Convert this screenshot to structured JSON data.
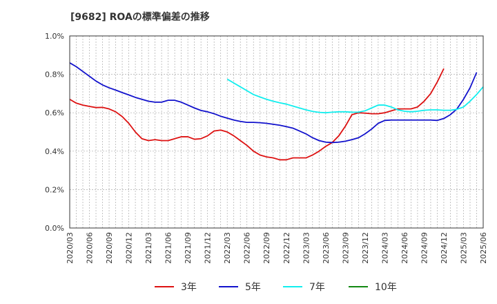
{
  "title": "[9682]  ROAの標準偏差の推移",
  "chart_data": {
    "type": "line",
    "title": "[9682]  ROAの標準偏差の推移",
    "xlabel": "",
    "ylabel": "",
    "ylim": [
      0,
      1.0
    ],
    "y_unit": "%",
    "y_ticks": [
      "0.0%",
      "0.2%",
      "0.4%",
      "0.6%",
      "0.8%",
      "1.0%"
    ],
    "x_ticks": [
      "2020/03",
      "2020/06",
      "2020/09",
      "2020/12",
      "2021/03",
      "2021/06",
      "2021/09",
      "2021/12",
      "2022/03",
      "2022/06",
      "2022/09",
      "2022/12",
      "2023/03",
      "2023/06",
      "2023/09",
      "2023/12",
      "2024/03",
      "2024/06",
      "2024/09",
      "2024/12",
      "2025/03",
      "2025/06"
    ],
    "grid": true,
    "legend_position": "bottom",
    "x_start": "2020/03",
    "series": [
      {
        "name": "3年",
        "color": "#dd1111",
        "start": "2020/03",
        "values": [
          0.67,
          0.65,
          0.64,
          0.633,
          0.627,
          0.628,
          0.62,
          0.605,
          0.58,
          0.545,
          0.5,
          0.465,
          0.455,
          0.46,
          0.455,
          0.455,
          0.465,
          0.475,
          0.475,
          0.462,
          0.465,
          0.48,
          0.505,
          0.51,
          0.5,
          0.48,
          0.455,
          0.43,
          0.4,
          0.38,
          0.37,
          0.365,
          0.355,
          0.355,
          0.365,
          0.365,
          0.365,
          0.38,
          0.4,
          0.425,
          0.445,
          0.48,
          0.53,
          0.59,
          0.6,
          0.598,
          0.595,
          0.595,
          0.6,
          0.61,
          0.62,
          0.62,
          0.62,
          0.63,
          0.66,
          0.7,
          0.76,
          0.83
        ]
      },
      {
        "name": "5年",
        "color": "#1111cc",
        "start": "2020/03",
        "values": [
          0.86,
          0.84,
          0.815,
          0.79,
          0.765,
          0.745,
          0.73,
          0.718,
          0.705,
          0.693,
          0.68,
          0.67,
          0.66,
          0.655,
          0.655,
          0.665,
          0.665,
          0.655,
          0.64,
          0.625,
          0.612,
          0.605,
          0.595,
          0.582,
          0.572,
          0.562,
          0.555,
          0.55,
          0.55,
          0.548,
          0.545,
          0.54,
          0.535,
          0.528,
          0.52,
          0.505,
          0.49,
          0.47,
          0.455,
          0.447,
          0.445,
          0.447,
          0.452,
          0.46,
          0.47,
          0.49,
          0.515,
          0.545,
          0.56,
          0.562,
          0.562,
          0.562,
          0.562,
          0.562,
          0.562,
          0.562,
          0.56,
          0.57,
          0.59,
          0.62,
          0.67,
          0.73,
          0.81
        ]
      },
      {
        "name": "7年",
        "color": "#11eeee",
        "start": "2022/03",
        "values": [
          0.775,
          0.755,
          0.735,
          0.715,
          0.695,
          0.682,
          0.67,
          0.66,
          0.652,
          0.645,
          0.635,
          0.625,
          0.615,
          0.607,
          0.602,
          0.6,
          0.603,
          0.605,
          0.605,
          0.603,
          0.603,
          0.61,
          0.625,
          0.64,
          0.64,
          0.63,
          0.615,
          0.608,
          0.605,
          0.608,
          0.613,
          0.615,
          0.615,
          0.613,
          0.613,
          0.618,
          0.63,
          0.66,
          0.695,
          0.735
        ]
      },
      {
        "name": "10年",
        "color": "#118811",
        "start": "2020/03",
        "values": []
      }
    ]
  }
}
